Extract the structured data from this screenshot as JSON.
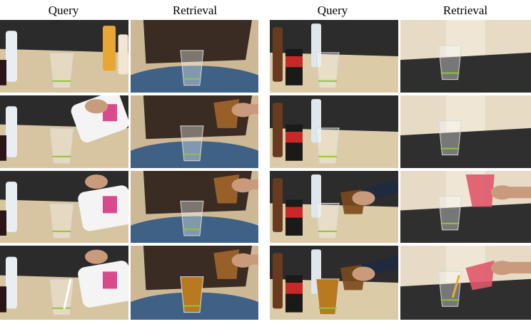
{
  "column_headers": [
    "Query",
    "Retrieval",
    "Query",
    "Retrieval"
  ]
}
